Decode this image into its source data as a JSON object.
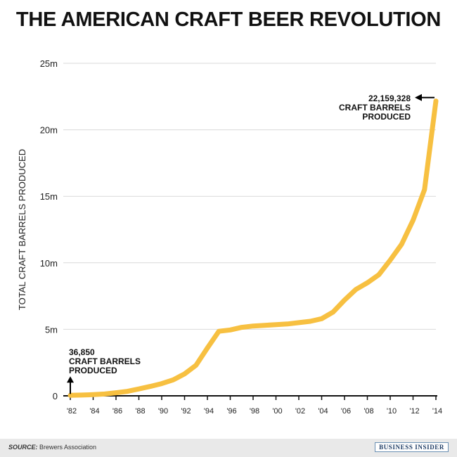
{
  "title": "THE AMERICAN CRAFT BEER REVOLUTION",
  "footer": {
    "source_label": "SOURCE:",
    "source_text": "Brewers Association",
    "brand": "BUSINESS INSIDER"
  },
  "colors": {
    "line": "#f7c041",
    "grid": "#d9d9d9",
    "axis": "#111111",
    "text": "#222222"
  },
  "chart_data": {
    "type": "line",
    "title": "THE AMERICAN CRAFT BEER REVOLUTION",
    "ylabel": "TOTAL CRAFT BARRELS PRODUCED",
    "xlabel": "",
    "xlim": [
      1982,
      2014
    ],
    "ylim": [
      0,
      25000000
    ],
    "grid": true,
    "x_ticks": [
      1982,
      1984,
      1986,
      1988,
      1990,
      1992,
      1994,
      1996,
      1998,
      2000,
      2002,
      2004,
      2006,
      2008,
      2010,
      2012,
      2014
    ],
    "x_tick_labels": [
      "'82",
      "'84",
      "'86",
      "'88",
      "'90",
      "'92",
      "'94",
      "'96",
      "'98",
      "'00",
      "'02",
      "'04",
      "'06",
      "'08",
      "'10",
      "'12",
      "'14"
    ],
    "y_ticks": [
      0,
      5000000,
      10000000,
      15000000,
      20000000,
      25000000
    ],
    "y_tick_labels": [
      "0",
      "5m",
      "10m",
      "15m",
      "20m",
      "25m"
    ],
    "series": [
      {
        "x": [
          1982,
          1983,
          1984,
          1985,
          1986,
          1987,
          1988,
          1989,
          1990,
          1991,
          1992,
          1993,
          1994,
          1995,
          1996,
          1997,
          1998,
          1999,
          2000,
          2001,
          2002,
          2003,
          2004,
          2005,
          2006,
          2007,
          2008,
          2009,
          2010,
          2011,
          2012,
          2013,
          2014
        ],
        "values": [
          36850,
          60000,
          90000,
          140000,
          230000,
          340000,
          520000,
          710000,
          920000,
          1200000,
          1650000,
          2300000,
          3600000,
          4850000,
          4950000,
          5150000,
          5250000,
          5300000,
          5350000,
          5400000,
          5500000,
          5600000,
          5800000,
          6300000,
          7200000,
          8000000,
          8500000,
          9100000,
          10200000,
          11400000,
          13200000,
          15500000,
          22159328
        ]
      }
    ],
    "annotations": [
      {
        "x": 1982,
        "y": 36850,
        "lines": [
          "36,850",
          "CRAFT BARRELS",
          "PRODUCED"
        ]
      },
      {
        "x": 2014,
        "y": 22159328,
        "lines": [
          "22,159,328",
          "CRAFT BARRELS",
          "PRODUCED"
        ]
      }
    ]
  }
}
